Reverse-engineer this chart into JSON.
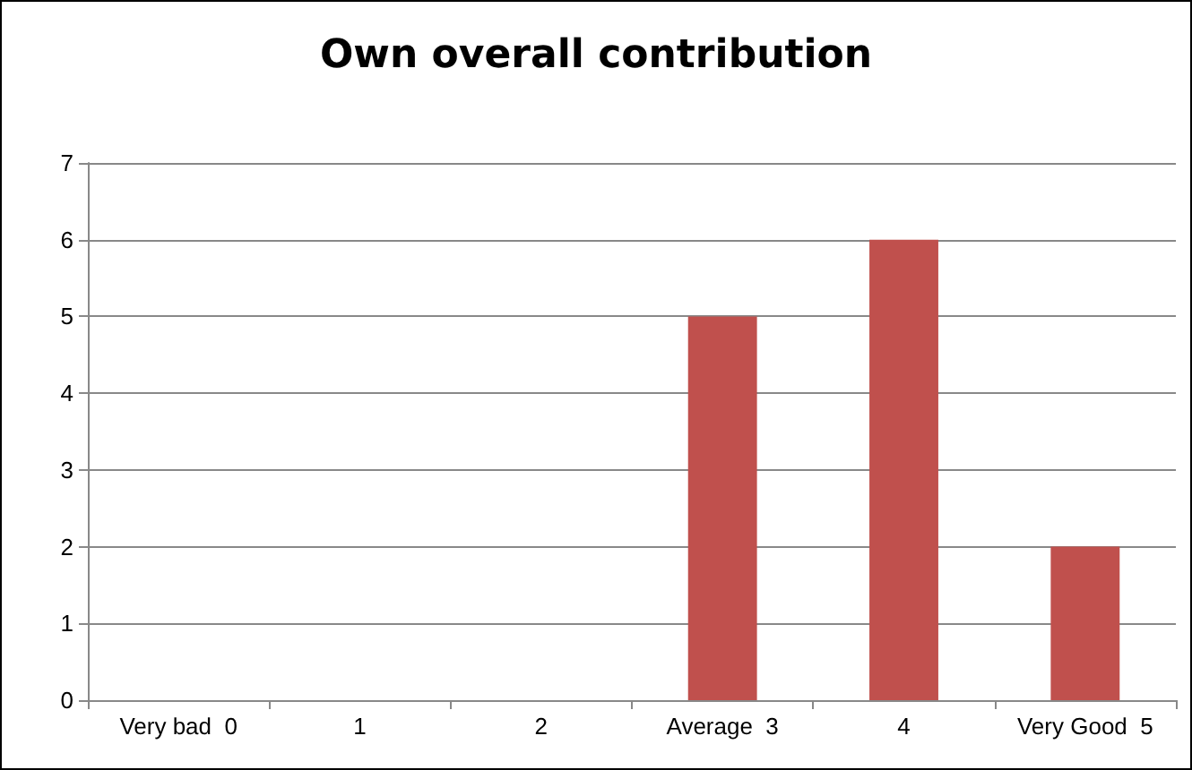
{
  "chart_data": {
    "type": "bar",
    "title": "Own overall contribution",
    "categories": [
      "Very bad  0",
      "1",
      "2",
      "Average  3",
      "4",
      "Very Good  5"
    ],
    "values": [
      0,
      0,
      0,
      5,
      6,
      2
    ],
    "color": "#c0504d",
    "ylim": [
      0,
      7
    ],
    "yticks": [
      0,
      1,
      2,
      3,
      4,
      5,
      6,
      7
    ],
    "grid": "y"
  }
}
